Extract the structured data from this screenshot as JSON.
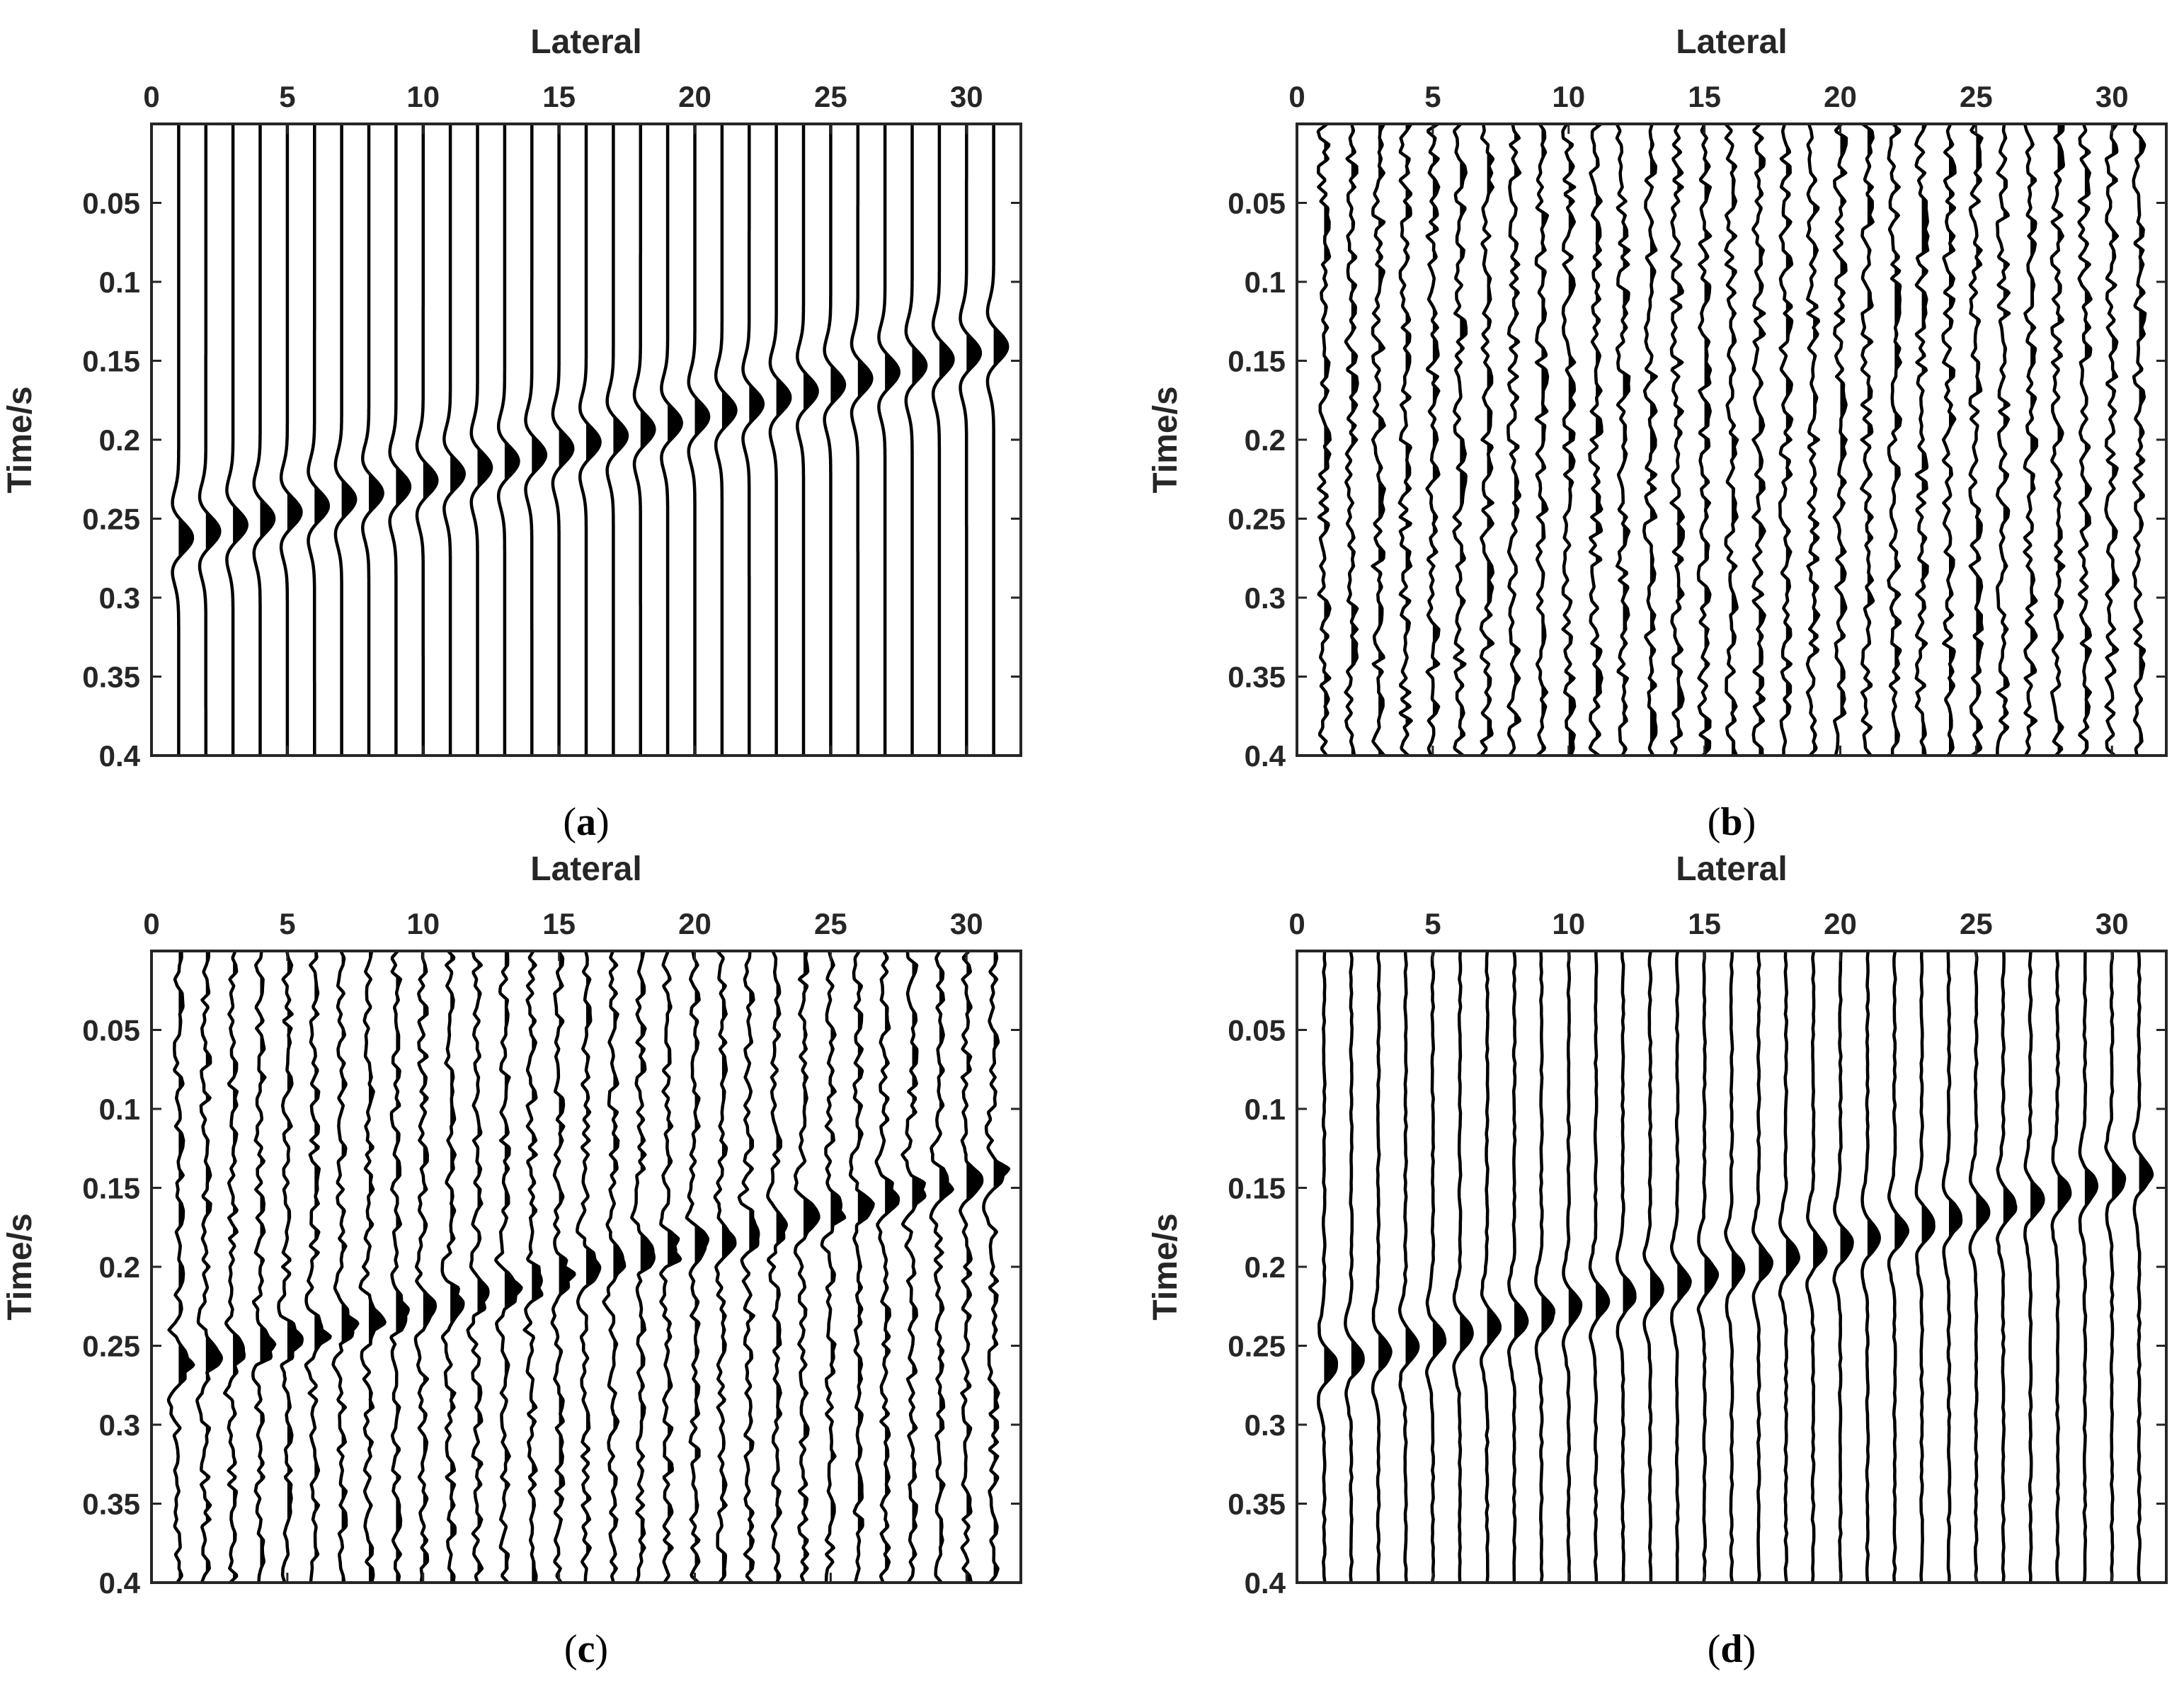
{
  "colors": {
    "trace": "#000000",
    "axes": "#262626",
    "background": "#ffffff"
  },
  "chart_data": [
    {
      "type": "seismic-wiggle",
      "panel": "a",
      "caption": {
        "open": "(",
        "letter": "a",
        "close": ")"
      },
      "title": "",
      "xlabel": "Lateral",
      "ylabel": "Time/s",
      "xlim": [
        0,
        32
      ],
      "ylim": [
        0.4,
        0
      ],
      "xticks": [
        0,
        5,
        10,
        15,
        20,
        25,
        30
      ],
      "xtick_labels": [
        "0",
        "5",
        "10",
        "15",
        "20",
        "25",
        "30"
      ],
      "yticks": [
        0.05,
        0.1,
        0.15,
        0.2,
        0.25,
        0.3,
        0.35,
        0.4
      ],
      "ytick_labels": [
        "0.05",
        "0.1",
        "0.15",
        "0.2",
        "0.25",
        "0.3",
        "0.35",
        "0.4"
      ],
      "trace_count": 31,
      "event_time_first": 0.262,
      "event_time_last": 0.141,
      "noise_level": 0,
      "event_amplitude": 1.0
    },
    {
      "type": "seismic-wiggle",
      "panel": "b",
      "caption": {
        "open": "(",
        "letter": "b",
        "close": ")"
      },
      "title": "",
      "xlabel": "Lateral",
      "ylabel": "Time/s",
      "xlim": [
        0,
        32
      ],
      "ylim": [
        0.4,
        0
      ],
      "xticks": [
        0,
        5,
        10,
        15,
        20,
        25,
        30
      ],
      "xtick_labels": [
        "0",
        "5",
        "10",
        "15",
        "20",
        "25",
        "30"
      ],
      "yticks": [
        0.05,
        0.1,
        0.15,
        0.2,
        0.25,
        0.3,
        0.35,
        0.4
      ],
      "ytick_labels": [
        "0.05",
        "0.1",
        "0.15",
        "0.2",
        "0.25",
        "0.3",
        "0.35",
        "0.4"
      ],
      "trace_count": 31,
      "event_time_first": null,
      "event_time_last": null,
      "noise_level": 0.45,
      "event_amplitude": 0
    },
    {
      "type": "seismic-wiggle",
      "panel": "c",
      "caption": {
        "open": "(",
        "letter": "c",
        "close": ")"
      },
      "title": "",
      "xlabel": "Lateral",
      "ylabel": "Time/s",
      "xlim": [
        0,
        32
      ],
      "ylim": [
        0.4,
        0
      ],
      "xticks": [
        0,
        5,
        10,
        15,
        20,
        25,
        30
      ],
      "xtick_labels": [
        "0",
        "5",
        "10",
        "15",
        "20",
        "25",
        "30"
      ],
      "yticks": [
        0.05,
        0.1,
        0.15,
        0.2,
        0.25,
        0.3,
        0.35,
        0.4
      ],
      "ytick_labels": [
        "0.05",
        "0.1",
        "0.15",
        "0.2",
        "0.25",
        "0.3",
        "0.35",
        "0.4"
      ],
      "trace_count": 31,
      "event_time_first": 0.262,
      "event_time_last": 0.141,
      "noise_level": 0.35,
      "event_amplitude": 0.9
    },
    {
      "type": "seismic-wiggle",
      "panel": "d",
      "caption": {
        "open": "(",
        "letter": "d",
        "close": ")"
      },
      "title": "",
      "xlabel": "Lateral",
      "ylabel": "Time/s",
      "xlim": [
        0,
        32
      ],
      "ylim": [
        0.4,
        0
      ],
      "xticks": [
        0,
        5,
        10,
        15,
        20,
        25,
        30
      ],
      "xtick_labels": [
        "0",
        "5",
        "10",
        "15",
        "20",
        "25",
        "30"
      ],
      "yticks": [
        0.05,
        0.1,
        0.15,
        0.2,
        0.25,
        0.3,
        0.35,
        0.4
      ],
      "ytick_labels": [
        "0.05",
        "0.1",
        "0.15",
        "0.2",
        "0.25",
        "0.3",
        "0.35",
        "0.4"
      ],
      "trace_count": 31,
      "event_time_first": 0.262,
      "event_time_last": 0.141,
      "noise_level": 0.06,
      "event_amplitude": 0.9
    }
  ]
}
